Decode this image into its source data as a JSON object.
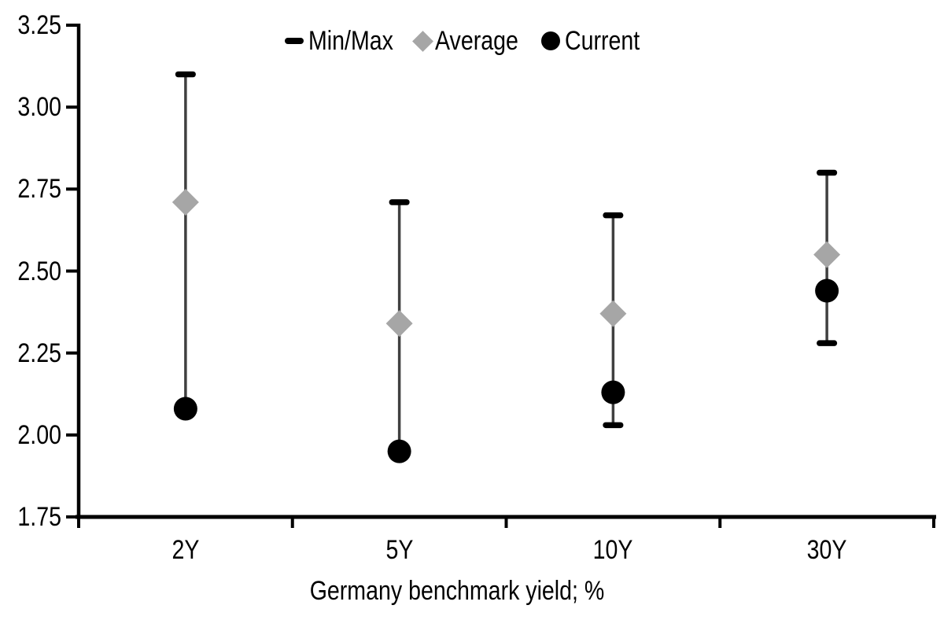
{
  "chart_data": {
    "type": "scatter",
    "subtype": "min-max-range",
    "title": "",
    "xlabel": "Germany benchmark yield; %",
    "ylabel": "",
    "categories": [
      "2Y",
      "5Y",
      "10Y",
      "30Y"
    ],
    "series": [
      {
        "name": "Min/Max",
        "role": "range",
        "marker": "dash",
        "min": [
          2.08,
          1.95,
          2.03,
          2.28
        ],
        "max": [
          3.1,
          2.71,
          2.67,
          2.8
        ]
      },
      {
        "name": "Average",
        "role": "points",
        "marker": "diamond",
        "values": [
          2.71,
          2.34,
          2.37,
          2.55
        ]
      },
      {
        "name": "Current",
        "role": "points",
        "marker": "circle",
        "values": [
          2.08,
          1.95,
          2.13,
          2.44
        ]
      }
    ],
    "ylim": [
      1.75,
      3.25
    ],
    "ytick_step": 0.25,
    "ytick_labels": [
      "3.25",
      "3.00",
      "2.75",
      "2.50",
      "2.25",
      "2.00",
      "1.75"
    ],
    "grid": false,
    "legend_position": "top-center"
  },
  "colors": {
    "background": "#ffffff",
    "axis": "#000000",
    "text": "#000000",
    "range_line": "#404040",
    "range_cap": "#000000",
    "average_marker": "#a6a6a6",
    "current_marker": "#000000"
  }
}
